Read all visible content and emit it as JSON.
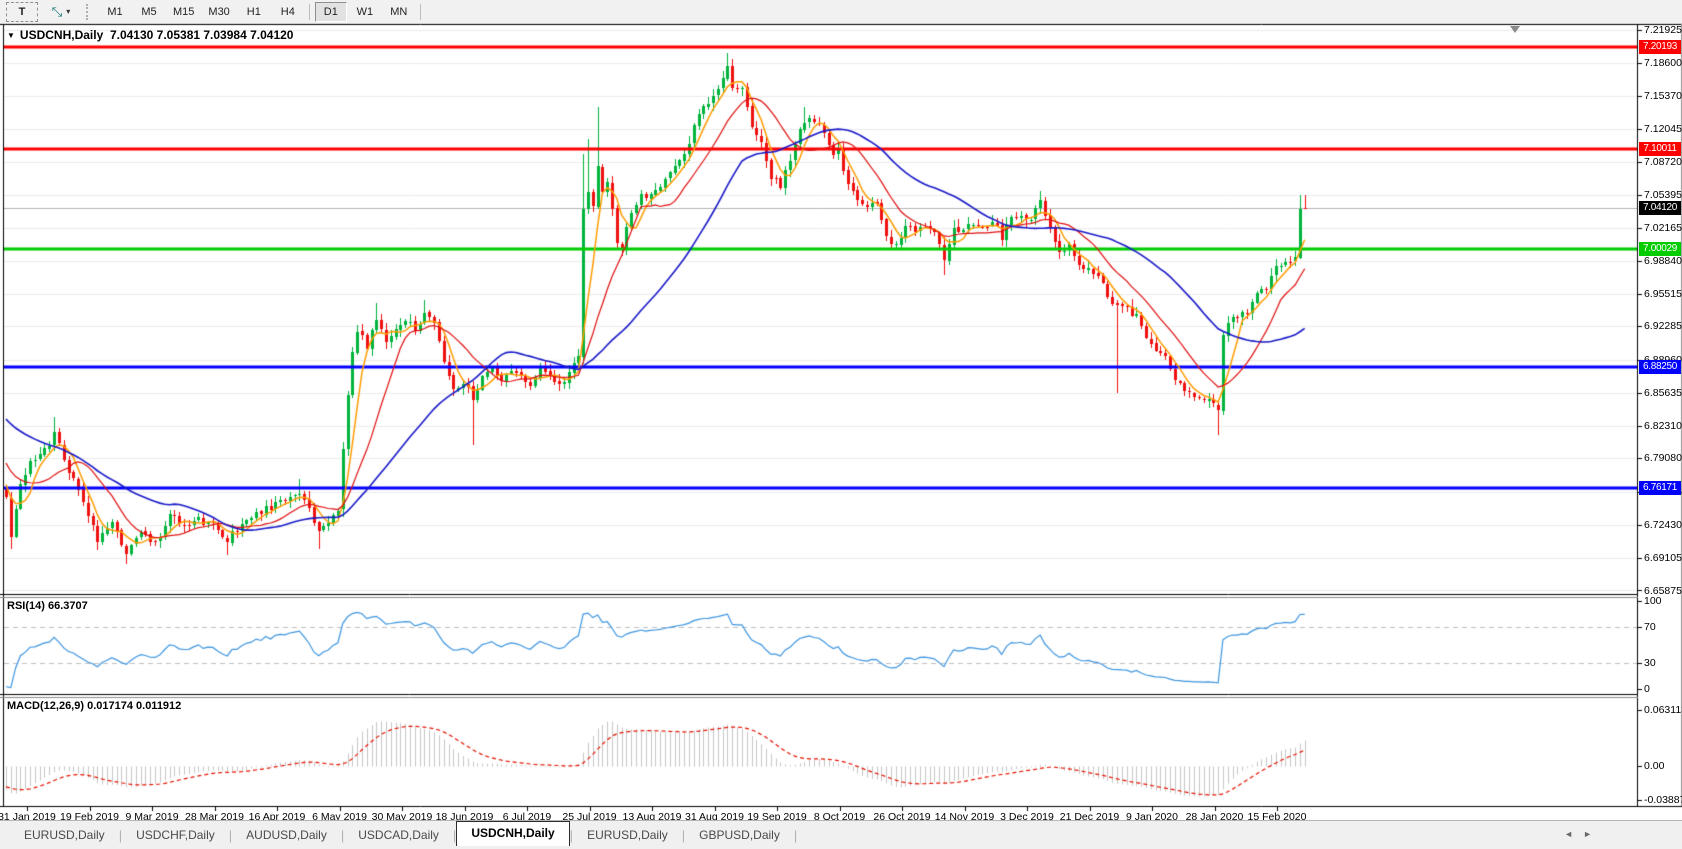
{
  "toolbar": {
    "text_tool_label": "T",
    "cursor_tool_glyph": "⤡",
    "dropdown_caret": "▾",
    "timeframes": [
      "M1",
      "M5",
      "M15",
      "M30",
      "H1",
      "H4",
      "D1",
      "W1",
      "MN"
    ],
    "active_timeframe": "D1"
  },
  "chart": {
    "title_symbol": "USDCNH,Daily",
    "title_quote": "7.04130 7.05381 7.03984 7.04120",
    "collapse_triangle": "▼",
    "price_axis_ticks": [
      "7.21925",
      "7.18600",
      "7.15370",
      "7.12045",
      "7.08720",
      "7.05395",
      "7.02165",
      "6.98840",
      "6.95515",
      "6.92285",
      "6.88960",
      "6.85635",
      "6.82310",
      "6.79080",
      "6.75755",
      "6.72430",
      "6.69105",
      "6.65875"
    ],
    "level_badges": [
      {
        "label": "7.20193",
        "price": 7.20193,
        "color": "#ff0000"
      },
      {
        "label": "7.10011",
        "price": 7.10011,
        "color": "#ff0000"
      },
      {
        "label": "7.00029",
        "price": 7.00029,
        "color": "#00cc00"
      },
      {
        "label": "6.88250",
        "price": 6.8825,
        "color": "#0000ff"
      },
      {
        "label": "6.76171",
        "price": 6.76171,
        "color": "#0000ff"
      }
    ],
    "current_price_badge": {
      "label": "7.04120",
      "price": 7.0412,
      "color": "#000000"
    }
  },
  "rsi_panel": {
    "label": "RSI(14) 66.3707",
    "scale": [
      "100",
      "70",
      "30",
      "0"
    ],
    "dashed_levels": [
      70,
      30
    ]
  },
  "macd_panel": {
    "label": "MACD(12,26,9) 0.017174 0.011912",
    "scale": [
      "0.063113",
      "0.00",
      "-0.038872"
    ]
  },
  "date_axis": {
    "labels": [
      "31 Jan 2019",
      "19 Feb 2019",
      "9 Mar 2019",
      "28 Mar 2019",
      "16 Apr 2019",
      "6 May 2019",
      "30 May 2019",
      "18 Jun 2019",
      "6 Jul 2019",
      "25 Jul 2019",
      "13 Aug 2019",
      "31 Aug 2019",
      "19 Sep 2019",
      "8 Oct 2019",
      "26 Oct 2019",
      "14 Nov 2019",
      "3 Dec 2019",
      "21 Dec 2019",
      "9 Jan 2020",
      "28 Jan 2020",
      "15 Feb 2020"
    ]
  },
  "tabs": {
    "items": [
      {
        "label": "EURUSD,Daily",
        "active": false
      },
      {
        "label": "USDCHF,Daily",
        "active": false
      },
      {
        "label": "AUDUSD,Daily",
        "active": false
      },
      {
        "label": "USDCAD,Daily",
        "active": false
      },
      {
        "label": "USDCNH,Daily",
        "active": true
      },
      {
        "label": "EURUSD,Daily",
        "active": false
      },
      {
        "label": "GBPUSD,Daily",
        "active": false
      }
    ],
    "scroll_left_icon": "◄",
    "scroll_right_icon": "►"
  },
  "chart_data": {
    "type": "candlestick",
    "symbol": "USDCNH",
    "timeframe": "Daily",
    "last_bar": {
      "open": 7.0413,
      "high": 7.05381,
      "low": 7.03984,
      "close": 7.0412
    },
    "bars_total": 271,
    "colors": {
      "up": "#00b43c",
      "down": "#ef1010",
      "grid": "#ececec",
      "current_line": "#b4b4b4",
      "ma_fast": "#ff9c00",
      "ma_mid": "#e01010",
      "ma_slow": "#1a1ac8",
      "rsi_line": "#3e96e0",
      "rsi_dash": "#c0c0c0",
      "macd_hist": "#c6c6c6",
      "macd_signal": "#e41400"
    },
    "moving_average_periods": {
      "fast": 5,
      "mid": 13,
      "slow": 34
    },
    "rsi": {
      "period": 14,
      "last": 66.3707
    },
    "macd": {
      "fast": 12,
      "slow": 26,
      "signal": 9,
      "last_main": 0.017174,
      "last_signal": 0.011912
    },
    "prehistory_anchors": [
      [
        -60,
        6.92
      ],
      [
        -48,
        6.9
      ],
      [
        -36,
        6.885
      ],
      [
        -28,
        6.872
      ],
      [
        -22,
        6.858
      ],
      [
        -16,
        6.838
      ],
      [
        -10,
        6.806
      ],
      [
        -5,
        6.782
      ],
      [
        -1,
        6.758
      ]
    ],
    "price_path_anchors": [
      [
        0,
        6.75
      ],
      [
        1,
        6.712
      ],
      [
        3,
        6.768
      ],
      [
        5,
        6.786
      ],
      [
        8,
        6.798
      ],
      [
        10,
        6.815
      ],
      [
        13,
        6.78
      ],
      [
        16,
        6.744
      ],
      [
        19,
        6.71
      ],
      [
        22,
        6.724
      ],
      [
        25,
        6.696
      ],
      [
        28,
        6.72
      ],
      [
        31,
        6.706
      ],
      [
        34,
        6.734
      ],
      [
        37,
        6.72
      ],
      [
        40,
        6.73
      ],
      [
        43,
        6.724
      ],
      [
        46,
        6.71
      ],
      [
        50,
        6.73
      ],
      [
        54,
        6.74
      ],
      [
        58,
        6.75
      ],
      [
        61,
        6.757
      ],
      [
        63,
        6.74
      ],
      [
        65,
        6.716
      ],
      [
        67,
        6.728
      ],
      [
        69,
        6.74
      ],
      [
        70,
        6.8
      ],
      [
        71,
        6.858
      ],
      [
        72,
        6.898
      ],
      [
        73,
        6.918
      ],
      [
        75,
        6.904
      ],
      [
        77,
        6.929
      ],
      [
        79,
        6.91
      ],
      [
        81,
        6.92
      ],
      [
        83,
        6.93
      ],
      [
        85,
        6.92
      ],
      [
        87,
        6.934
      ],
      [
        89,
        6.928
      ],
      [
        91,
        6.89
      ],
      [
        93,
        6.858
      ],
      [
        95,
        6.868
      ],
      [
        97,
        6.852
      ],
      [
        99,
        6.872
      ],
      [
        101,
        6.882
      ],
      [
        103,
        6.866
      ],
      [
        105,
        6.878
      ],
      [
        107,
        6.872
      ],
      [
        109,
        6.864
      ],
      [
        111,
        6.878
      ],
      [
        113,
        6.874
      ],
      [
        115,
        6.862
      ],
      [
        117,
        6.874
      ],
      [
        119,
        6.895
      ],
      [
        120,
        7.04
      ],
      [
        121,
        7.058
      ],
      [
        122,
        7.044
      ],
      [
        123,
        7.086
      ],
      [
        124,
        7.058
      ],
      [
        125,
        7.07
      ],
      [
        126,
        7.044
      ],
      [
        127,
        7.006
      ],
      [
        128,
        6.996
      ],
      [
        129,
        7.02
      ],
      [
        130,
        7.034
      ],
      [
        131,
        7.046
      ],
      [
        132,
        7.058
      ],
      [
        133,
        7.05
      ],
      [
        134,
        7.056
      ],
      [
        136,
        7.064
      ],
      [
        138,
        7.08
      ],
      [
        140,
        7.086
      ],
      [
        142,
        7.106
      ],
      [
        144,
        7.138
      ],
      [
        146,
        7.146
      ],
      [
        148,
        7.162
      ],
      [
        150,
        7.183
      ],
      [
        151,
        7.16
      ],
      [
        153,
        7.162
      ],
      [
        155,
        7.12
      ],
      [
        157,
        7.11
      ],
      [
        159,
        7.072
      ],
      [
        161,
        7.062
      ],
      [
        163,
        7.09
      ],
      [
        165,
        7.12
      ],
      [
        166,
        7.13
      ],
      [
        168,
        7.13
      ],
      [
        170,
        7.118
      ],
      [
        172,
        7.092
      ],
      [
        173,
        7.1
      ],
      [
        175,
        7.062
      ],
      [
        177,
        7.052
      ],
      [
        179,
        7.042
      ],
      [
        181,
        7.048
      ],
      [
        183,
        7.012
      ],
      [
        185,
        7.002
      ],
      [
        187,
        7.022
      ],
      [
        189,
        7.02
      ],
      [
        191,
        7.022
      ],
      [
        193,
        7.02
      ],
      [
        195,
        6.988
      ],
      [
        197,
        7.02
      ],
      [
        199,
        7.022
      ],
      [
        201,
        7.024
      ],
      [
        203,
        7.02
      ],
      [
        205,
        7.03
      ],
      [
        207,
        7.012
      ],
      [
        209,
        7.03
      ],
      [
        211,
        7.03
      ],
      [
        213,
        7.032
      ],
      [
        215,
        7.046
      ],
      [
        217,
        7.02
      ],
      [
        219,
        7.0
      ],
      [
        221,
        7.002
      ],
      [
        223,
        6.982
      ],
      [
        225,
        6.978
      ],
      [
        227,
        6.974
      ],
      [
        229,
        6.952
      ],
      [
        231,
        6.944
      ],
      [
        233,
        6.94
      ],
      [
        235,
        6.933
      ],
      [
        237,
        6.908
      ],
      [
        239,
        6.9
      ],
      [
        241,
        6.893
      ],
      [
        243,
        6.866
      ],
      [
        245,
        6.86
      ],
      [
        247,
        6.855
      ],
      [
        249,
        6.85
      ],
      [
        251,
        6.845
      ],
      [
        252,
        6.838
      ],
      [
        253,
        6.915
      ],
      [
        254,
        6.93
      ],
      [
        256,
        6.934
      ],
      [
        258,
        6.934
      ],
      [
        260,
        6.958
      ],
      [
        262,
        6.96
      ],
      [
        264,
        6.981
      ],
      [
        266,
        6.988
      ],
      [
        268,
        6.992
      ],
      [
        269,
        7.04
      ],
      [
        270,
        7.041
      ]
    ],
    "wick_highs": {
      "10": 6.832,
      "61": 6.77,
      "77": 6.946,
      "87": 6.949,
      "120": 7.095,
      "121": 7.11,
      "123": 7.142,
      "150": 7.1965,
      "166": 7.142,
      "215": 7.058,
      "269": 7.0538,
      "270": 7.05381
    },
    "wick_lows": {
      "1": 6.7,
      "25": 6.685,
      "46": 6.694,
      "65": 6.7,
      "97": 6.804,
      "195": 6.974,
      "231": 6.856,
      "252": 6.814,
      "270": 7.03984
    }
  }
}
